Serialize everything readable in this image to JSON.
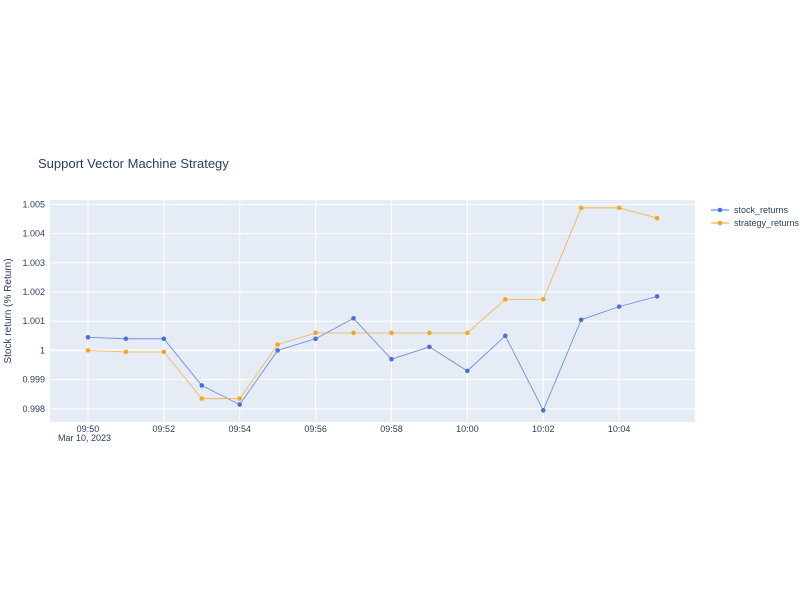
{
  "chart_data": {
    "type": "line",
    "title": "Support Vector Machine Strategy",
    "xlabel": "",
    "ylabel": "Stock return (% Return)",
    "x": [
      "09:50",
      "09:51",
      "09:52",
      "09:53",
      "09:54",
      "09:55",
      "09:56",
      "09:57",
      "09:58",
      "09:59",
      "10:00",
      "10:01",
      "10:02",
      "10:03",
      "10:04",
      "10:05"
    ],
    "x_date_label": "Mar 10, 2023",
    "x_ticks": [
      "09:50",
      "09:52",
      "09:54",
      "09:56",
      "09:58",
      "10:00",
      "10:02",
      "10:04"
    ],
    "xlim": [
      "09:49",
      "10:06"
    ],
    "y_ticks": [
      0.998,
      0.999,
      1,
      1.001,
      1.002,
      1.003,
      1.004,
      1.005
    ],
    "y_tick_labels": [
      "0.998",
      "0.999",
      "1",
      "1.001",
      "1.002",
      "1.003",
      "1.004",
      "1.005"
    ],
    "ylim": [
      0.99755,
      1.00515
    ],
    "grid": true,
    "legend": "top-right",
    "series": [
      {
        "name": "stock_returns",
        "color": "#4c6edb",
        "values": [
          1.00045,
          1.0004,
          1.0004,
          0.9988,
          0.99815,
          1.0,
          1.0004,
          1.0011,
          0.9997,
          1.00012,
          0.9993,
          1.0005,
          0.99795,
          1.00105,
          1.0015,
          1.00185
        ]
      },
      {
        "name": "strategy_returns",
        "color": "#f5a623",
        "values": [
          1.0,
          0.99995,
          0.99995,
          0.99835,
          0.99835,
          1.0002,
          1.0006,
          1.0006,
          1.0006,
          1.0006,
          1.0006,
          1.00175,
          1.00175,
          1.00488,
          1.00488,
          1.00453
        ]
      }
    ]
  }
}
